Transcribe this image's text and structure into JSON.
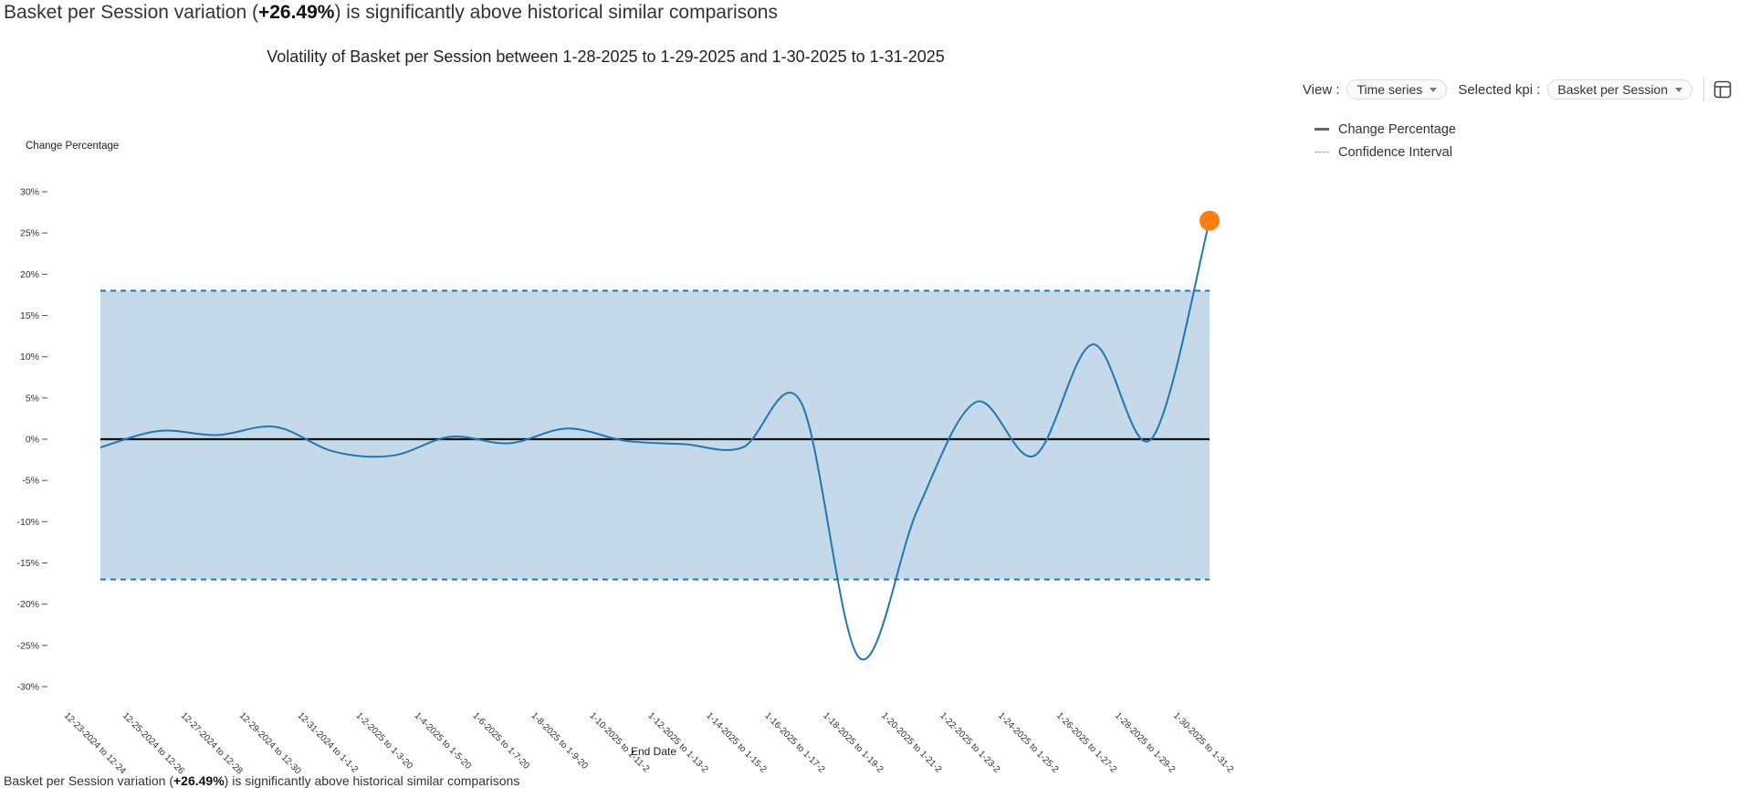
{
  "headline": {
    "prefix": "Basket per Session variation (",
    "value": "+26.49%",
    "suffix": ") is significantly above historical similar comparisons"
  },
  "controls": {
    "view_label": "View :",
    "view_value": "Time series",
    "kpi_label": "Selected kpi :",
    "kpi_value": "Basket per Session",
    "table_icon": "table-icon"
  },
  "legend": {
    "change": "Change Percentage",
    "confidence": "Confidence Interval"
  },
  "colors": {
    "line": "#1f77b4",
    "band": "#c5d9ea",
    "band_edge": "#1f77b4",
    "zero_line": "#111111",
    "highlight": "#ff7f0e"
  },
  "chart_data": {
    "type": "line",
    "title": "Volatility of Basket per Session between 1-28-2025 to 1-29-2025 and 1-30-2025 to 1-31-2025",
    "ylabel": "Change Percentage",
    "xlabel": "End Date",
    "ylim": [
      -30,
      30
    ],
    "yticks": [
      30,
      25,
      20,
      15,
      10,
      5,
      0,
      -5,
      -10,
      -15,
      -20,
      -25,
      -30
    ],
    "tick_labels": [
      "12-23-2024 to 12-24",
      "12-25-2024 to 12-26",
      "12-27-2024 to 12-28",
      "12-29-2024 to 12-30",
      "12-31-2024 to 1-1-2",
      "1-2-2025 to 1-3-20",
      "1-4-2025 to 1-5-20",
      "1-6-2025 to 1-7-20",
      "1-8-2025 to 1-9-20",
      "1-10-2025 to 1-11-2",
      "1-12-2025 to 1-13-2",
      "1-14-2025 to 1-15-2",
      "1-16-2025 to 1-17-2",
      "1-18-2025 to 1-19-2",
      "1-20-2025 to 1-21-2",
      "1-22-2025 to 1-23-2",
      "1-24-2025 to 1-25-2",
      "1-26-2025 to 1-27-2",
      "1-28-2025 to 1-29-2",
      "1-30-2025 to 1-31-2"
    ],
    "series": [
      {
        "values": [
          -1.0,
          1.0,
          0.5,
          1.5,
          -1.5,
          -2.0,
          0.3,
          -0.5,
          1.3,
          -0.2,
          -0.6,
          -1.0,
          4.5,
          -26.5,
          -8.5,
          4.5,
          -2.0,
          11.5,
          0.0,
          26.49
        ]
      }
    ],
    "confidence_interval": [
      -17,
      18
    ],
    "highlight": {
      "index": 19,
      "value": 26.49
    },
    "grid": false
  }
}
